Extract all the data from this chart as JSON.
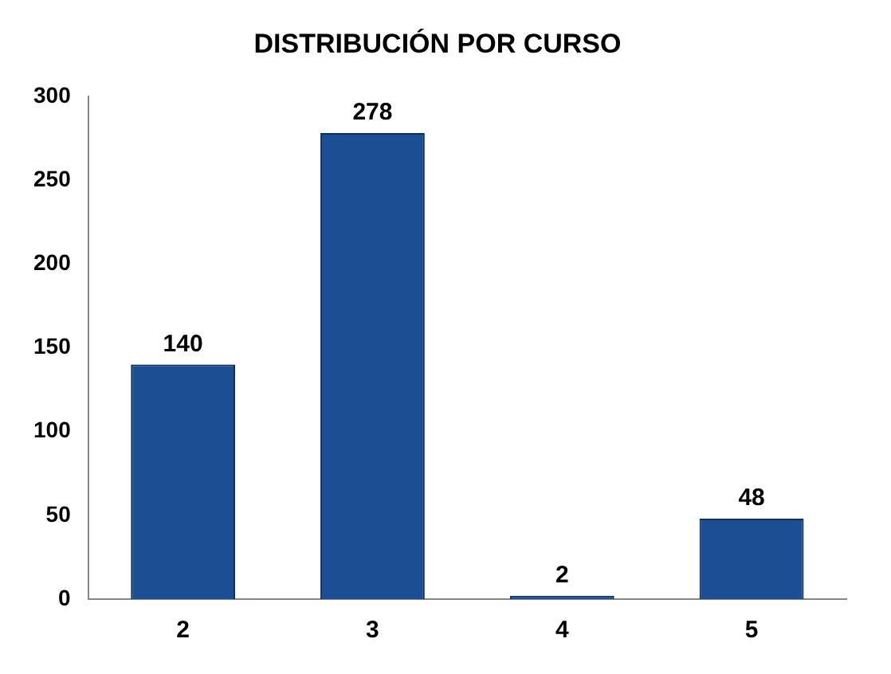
{
  "chart_data": {
    "type": "bar",
    "title": "DISTRIBUCIÓN POR CURSO",
    "categories": [
      "2",
      "3",
      "4",
      "5"
    ],
    "values": [
      140,
      278,
      2,
      48
    ],
    "color": "#1b4f93",
    "ylim": [
      0,
      300
    ],
    "yticks": [
      0,
      50,
      100,
      150,
      200,
      250,
      300
    ],
    "grid": false,
    "legend": false,
    "data_labels": true
  }
}
